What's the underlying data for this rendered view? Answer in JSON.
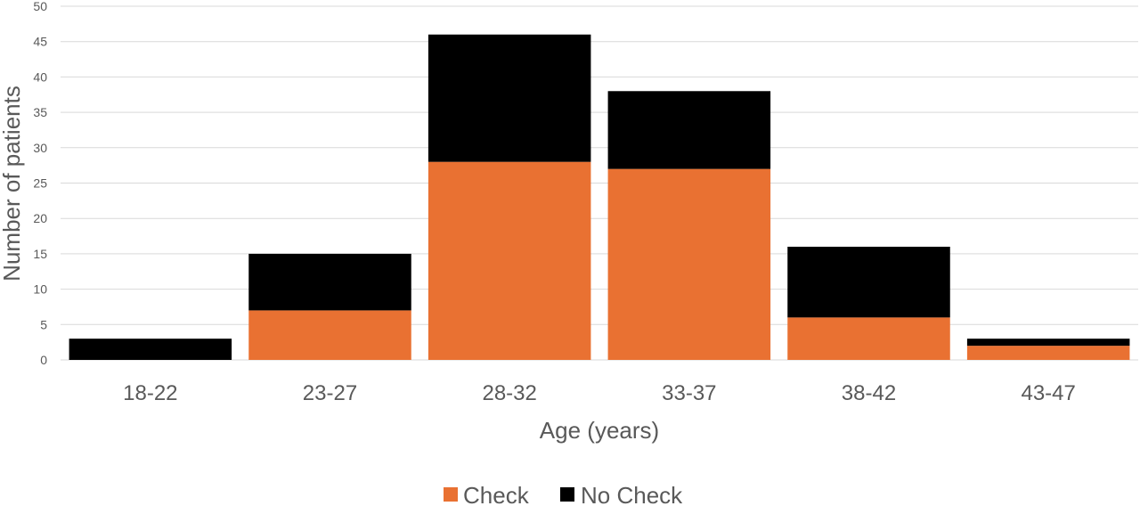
{
  "chart_data": {
    "type": "bar",
    "stacked": true,
    "categories": [
      "18-22",
      "23-27",
      "28-32",
      "33-37",
      "38-42",
      "43-47"
    ],
    "series": [
      {
        "name": "Check",
        "color": "#E97132",
        "values": [
          0,
          7,
          28,
          27,
          6,
          2
        ]
      },
      {
        "name": "No Check",
        "color": "#000000",
        "values": [
          3,
          8,
          18,
          11,
          10,
          1
        ]
      }
    ],
    "xlabel": "Age (years)",
    "ylabel": "Number of patients",
    "ylim": [
      0,
      50
    ],
    "yticks": [
      0,
      5,
      10,
      15,
      20,
      25,
      30,
      35,
      40,
      45,
      50
    ],
    "grid": true,
    "legend_position": "bottom"
  }
}
